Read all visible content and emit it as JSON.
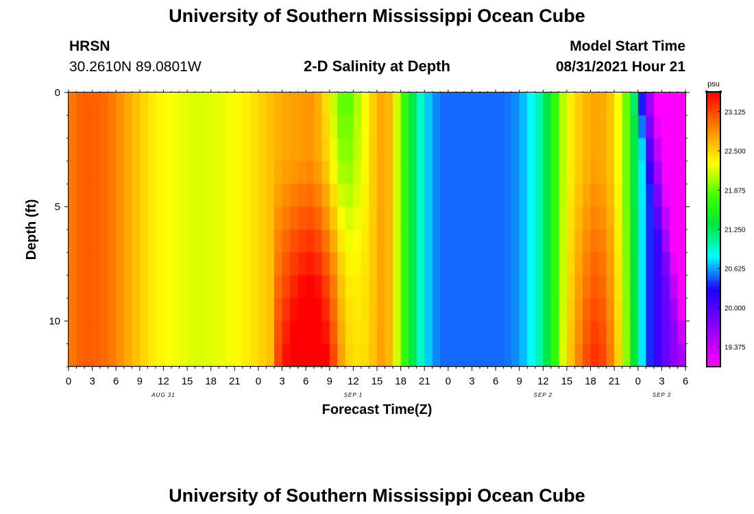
{
  "header": {
    "title": "University of Southern Mississippi Ocean Cube",
    "station": "HRSN",
    "coords": "30.2610N  89.0801W",
    "plot_title": "2-D Salinity at Depth",
    "model_label": "Model Start Time",
    "model_time": "08/31/2021 Hour 21"
  },
  "footer": {
    "title": "University of Southern Mississippi Ocean Cube"
  },
  "chart_data": {
    "type": "heatmap",
    "title": "2-D Salinity at Depth",
    "xlabel": "Forecast Time(Z)",
    "ylabel": "Depth (ft)",
    "x_range_hours": [
      0,
      78
    ],
    "x_ticks": [
      {
        "hour": 0,
        "label": "0"
      },
      {
        "hour": 3,
        "label": "3"
      },
      {
        "hour": 6,
        "label": "6"
      },
      {
        "hour": 9,
        "label": "9"
      },
      {
        "hour": 12,
        "label": "12"
      },
      {
        "hour": 15,
        "label": "15"
      },
      {
        "hour": 18,
        "label": "18"
      },
      {
        "hour": 21,
        "label": "21"
      },
      {
        "hour": 24,
        "label": "0"
      },
      {
        "hour": 27,
        "label": "3"
      },
      {
        "hour": 30,
        "label": "6"
      },
      {
        "hour": 33,
        "label": "9"
      },
      {
        "hour": 36,
        "label": "12"
      },
      {
        "hour": 39,
        "label": "15"
      },
      {
        "hour": 42,
        "label": "18"
      },
      {
        "hour": 45,
        "label": "21"
      },
      {
        "hour": 48,
        "label": "0"
      },
      {
        "hour": 51,
        "label": "3"
      },
      {
        "hour": 54,
        "label": "6"
      },
      {
        "hour": 57,
        "label": "9"
      },
      {
        "hour": 60,
        "label": "12"
      },
      {
        "hour": 63,
        "label": "15"
      },
      {
        "hour": 66,
        "label": "18"
      },
      {
        "hour": 69,
        "label": "21"
      },
      {
        "hour": 72,
        "label": "0"
      },
      {
        "hour": 75,
        "label": "3"
      },
      {
        "hour": 78,
        "label": "6"
      }
    ],
    "date_labels": [
      {
        "hour": 12,
        "label": "AUG 31"
      },
      {
        "hour": 36,
        "label": "SEP 1"
      },
      {
        "hour": 60,
        "label": "SEP 2"
      },
      {
        "hour": 75,
        "label": "SEP 3"
      }
    ],
    "y_range_ft": [
      0,
      12
    ],
    "y_ticks": [
      {
        "depth": 0,
        "label": "0"
      },
      {
        "depth": 5,
        "label": "5"
      },
      {
        "depth": 10,
        "label": "10"
      }
    ],
    "depth_levels_ft": [
      0.5,
      1.5,
      2.5,
      3.5,
      4.5,
      5.5,
      6.5,
      7.5,
      8.5,
      9.5,
      10.5,
      11.5
    ],
    "colorbar": {
      "unit": "psu",
      "range": [
        19.06,
        23.44
      ],
      "tick_labels": [
        "23.125",
        "22.500",
        "21.875",
        "21.250",
        "20.625",
        "20.000",
        "19.375"
      ],
      "tick_values": [
        23.125,
        22.5,
        21.875,
        21.25,
        20.625,
        20.0,
        19.375
      ]
    },
    "salinity_profile_psu": {
      "columns": "one per forecast hour 0-77, rows are depth levels top to bottom",
      "note": "values estimated from the colour field"
    }
  }
}
